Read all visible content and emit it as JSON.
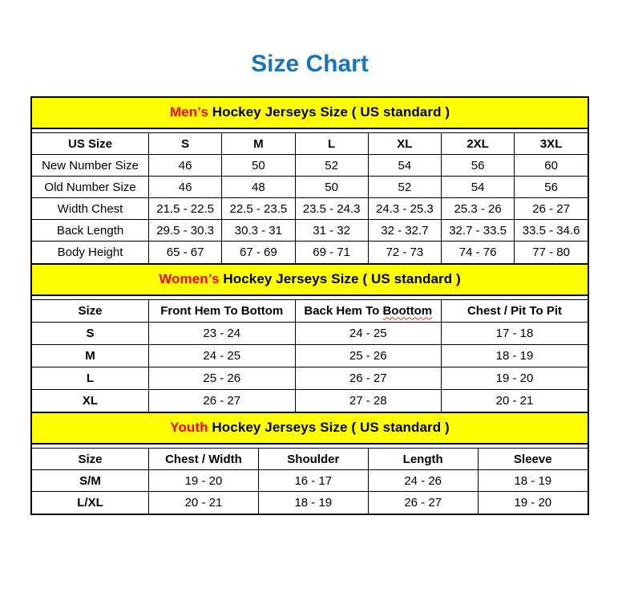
{
  "page": {
    "title": "Size Chart"
  },
  "colors": {
    "title": "#1b75bc",
    "section_highlight": "#ff0000",
    "band_background": "#ffff00",
    "border": "#000000"
  },
  "sections": [
    {
      "id": "mens",
      "heading": {
        "highlight": "Men’s",
        "rest": "Hockey Jerseys Size ( US standard )"
      },
      "columns": [
        "US Size",
        "S",
        "M",
        "L",
        "XL",
        "2XL",
        "3XL"
      ],
      "rows": [
        {
          "label": "New Number Size",
          "values": [
            "46",
            "50",
            "52",
            "54",
            "56",
            "60"
          ]
        },
        {
          "label": "Old Number Size",
          "values": [
            "46",
            "48",
            "50",
            "52",
            "54",
            "56"
          ]
        },
        {
          "label": "Width Chest",
          "values": [
            "21.5 - 22.5",
            "22.5 - 23.5",
            "23.5 - 24.3",
            "24.3 - 25.3",
            "25.3 - 26",
            "26 - 27"
          ]
        },
        {
          "label": "Back Length",
          "values": [
            "29.5 - 30.3",
            "30.3 - 31",
            "31 - 32",
            "32 - 32.7",
            "32.7 - 33.5",
            "33.5 - 34.6"
          ]
        },
        {
          "label": "Body Height",
          "values": [
            "65 - 67",
            "67 - 69",
            "69 - 71",
            "72 - 73",
            "74 - 76",
            "77 - 80"
          ]
        }
      ]
    },
    {
      "id": "womens",
      "heading": {
        "highlight": "Women’s",
        "rest": "Hockey Jerseys Size ( US standard )"
      },
      "columns": [
        {
          "text": "Size"
        },
        {
          "text": "Front Hem To Bottom"
        },
        {
          "text": "Back Hem To ",
          "typo": "Boottom"
        },
        {
          "text": "Chest / Pit To Pit"
        }
      ],
      "rows": [
        {
          "label": "S",
          "values": [
            "23 - 24",
            "24 - 25",
            "17 - 18"
          ]
        },
        {
          "label": "M",
          "values": [
            "24 - 25",
            "25 - 26",
            "18 - 19"
          ]
        },
        {
          "label": "L",
          "values": [
            "25 - 26",
            "26 - 27",
            "19 - 20"
          ]
        },
        {
          "label": "XL",
          "values": [
            "26 - 27",
            "27 - 28",
            "20 - 21"
          ]
        }
      ]
    },
    {
      "id": "youth",
      "heading": {
        "highlight": "Youth",
        "rest": "Hockey Jerseys Size ( US standard )"
      },
      "columns": [
        "Size",
        "Chest / Width",
        "Shoulder",
        "Length",
        "Sleeve"
      ],
      "rows": [
        {
          "label": "S/M",
          "values": [
            "19 - 20",
            "16 - 17",
            "24 - 26",
            "18 - 19"
          ]
        },
        {
          "label": "L/XL",
          "values": [
            "20 - 21",
            "18 - 19",
            "26 - 27",
            "19 - 20"
          ]
        }
      ]
    }
  ]
}
